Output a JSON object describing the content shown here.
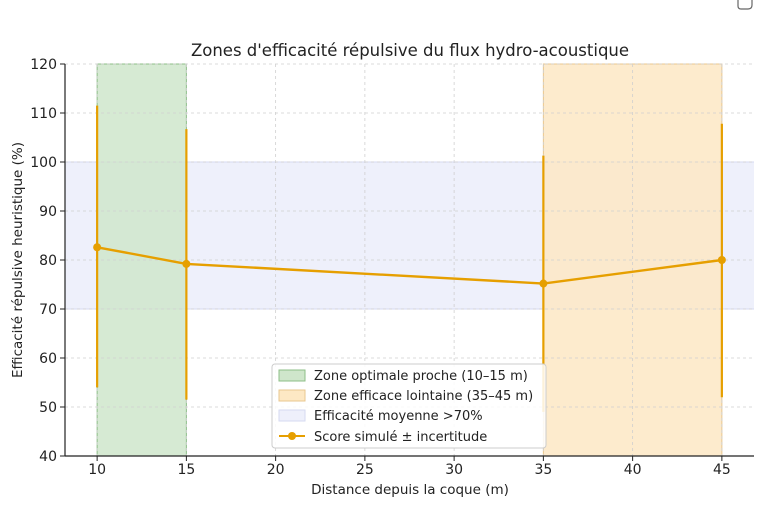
{
  "chart_data": {
    "type": "line",
    "title": "Zones d'efficacité répulsive du flux hydro-acoustique",
    "xlabel": "Distance depuis la coque (m)",
    "ylabel": "Efficacité répulsive heuristique (%)",
    "xlim": [
      8.2,
      46.8
    ],
    "ylim": [
      40,
      120
    ],
    "xticks": [
      10,
      15,
      20,
      25,
      30,
      35,
      40,
      45
    ],
    "yticks": [
      40,
      50,
      60,
      70,
      80,
      90,
      100,
      110,
      120
    ],
    "grid": true,
    "legend_position": "bottom-center",
    "zones": [
      {
        "label": "Zone optimale proche (10–15 m)",
        "axis": "x",
        "from": 10,
        "to": 15,
        "color": "#cfe6cb",
        "edge": "#8dbf87"
      },
      {
        "label": "Zone efficace lointaine (35–45 m)",
        "axis": "x",
        "from": 35,
        "to": 45,
        "color": "#fde8c4",
        "edge": "#e9c78f"
      },
      {
        "label": "Efficacité moyenne >70%",
        "axis": "y",
        "from": 70,
        "to": 100,
        "color": "#eef0fb",
        "edge": "#d6daf0"
      }
    ],
    "series": [
      {
        "name": "Score simulé ± incertitude",
        "color": "#e69f00",
        "x": [
          10,
          15,
          35,
          45
        ],
        "y": [
          82.6,
          79.2,
          75.2,
          80.0
        ],
        "err_low": [
          54.0,
          51.5,
          49.0,
          52.0
        ],
        "err_high": [
          111.5,
          106.7,
          101.3,
          107.8
        ]
      }
    ]
  }
}
